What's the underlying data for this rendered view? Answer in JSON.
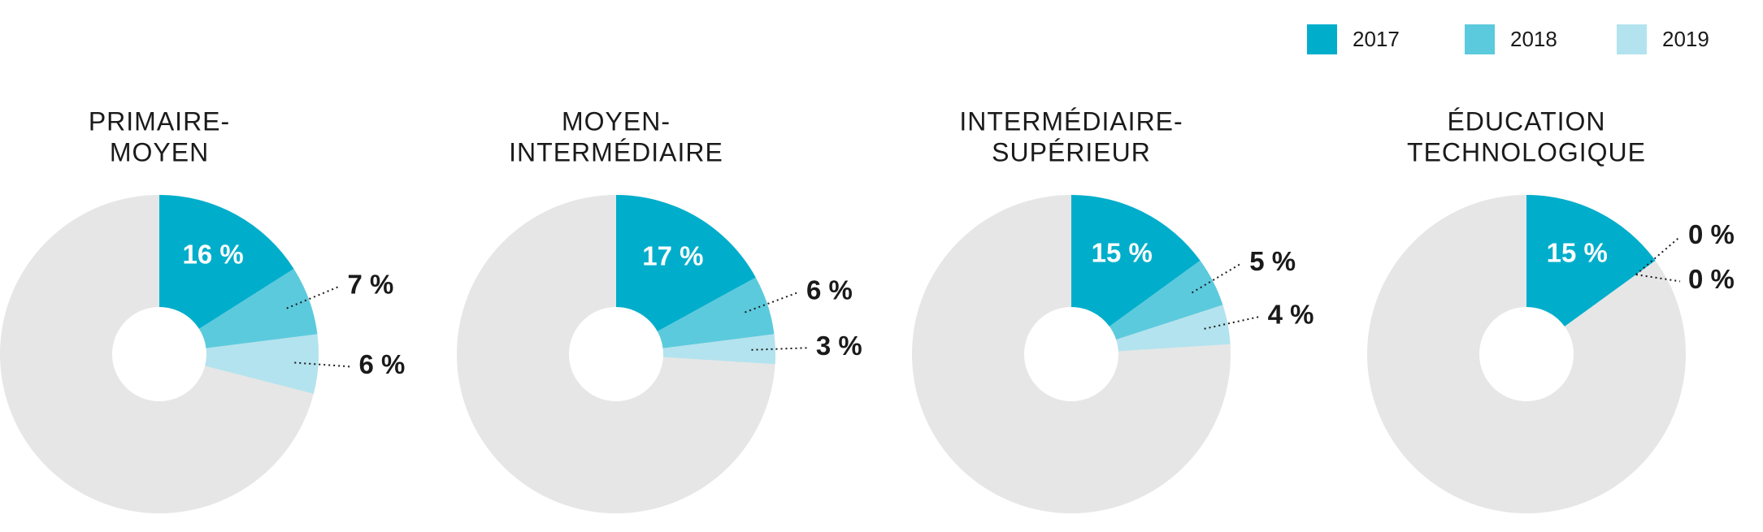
{
  "chart_data": [
    {
      "type": "pie",
      "title": [
        "PRIMAIRE-",
        "MOYEN"
      ],
      "categories": [
        "2017",
        "2018",
        "2019"
      ],
      "colors": [
        "#00aecb",
        "#5ccadd",
        "#b3e3ee"
      ],
      "values": [
        16,
        7,
        6
      ],
      "value_labels": [
        "16 %",
        "7 %",
        "6 %"
      ]
    },
    {
      "type": "pie",
      "title": [
        "MOYEN-",
        "INTERMÉDIAIRE"
      ],
      "categories": [
        "2017",
        "2018",
        "2019"
      ],
      "colors": [
        "#00aecb",
        "#5ccadd",
        "#b3e3ee"
      ],
      "values": [
        17,
        6,
        3
      ],
      "value_labels": [
        "17 %",
        "6 %",
        "3 %"
      ]
    },
    {
      "type": "pie",
      "title": [
        "INTERMÉDIAIRE-",
        "SUPÉRIEUR"
      ],
      "categories": [
        "2017",
        "2018",
        "2019"
      ],
      "colors": [
        "#00aecb",
        "#5ccadd",
        "#b3e3ee"
      ],
      "values": [
        15,
        5,
        4
      ],
      "value_labels": [
        "15 %",
        "5 %",
        "4 %"
      ]
    },
    {
      "type": "pie",
      "title": [
        "ÉDUCATION",
        "TECHNOLOGIQUE"
      ],
      "categories": [
        "2017",
        "2018",
        "2019"
      ],
      "colors": [
        "#00aecb",
        "#5ccadd",
        "#b3e3ee"
      ],
      "values": [
        15,
        0,
        0
      ],
      "value_labels": [
        "15 %",
        "0 %",
        "0 %"
      ]
    }
  ]
}
